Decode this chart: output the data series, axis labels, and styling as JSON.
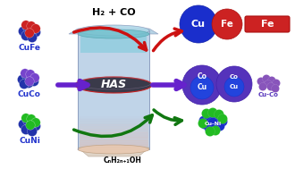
{
  "bg_color": "#ffffff",
  "cufe_label": "CuFe",
  "cuco_label": "CuCo",
  "cuni_label": "CuNi",
  "has_label": "HAS",
  "h2co_label": "H₂ + CO",
  "product_label": "CₙH₂ₙ₊₁OH",
  "cu_label": "Cu",
  "fe_label": "Fe",
  "co_label": "Co",
  "cuco_prod_label": "Cu-Co",
  "cuni_prod_label": "Cu-Ni",
  "blue_sphere": "#1a2ecc",
  "red_sphere": "#cc2222",
  "purple_sphere": "#7744cc",
  "green_sphere": "#22bb22",
  "dark_blue": "#1122bb",
  "dark_purple": "#4422aa",
  "arrow_red": "#cc1111",
  "arrow_purple": "#6622cc",
  "arrow_green": "#117711",
  "reactor_body": "#b8ccdd",
  "reactor_edge": "#8899bb",
  "reactor_top_fill": "#88ccdd",
  "reactor_dark": "#3a3a4a",
  "has_text": "#ffffff",
  "fe_rect": "#cc2222",
  "cu_circle": "#1a2ecc",
  "fe_circle": "#cc2222",
  "co_outer": "#5533bb",
  "co_inner": "#2233cc",
  "cufe_blue": "#2233aa",
  "cufe_red": "#cc2222",
  "cuco_blue": "#2233aa",
  "cuco_purple": "#7744cc",
  "cuni_blue": "#2233aa",
  "cuni_green": "#22bb22",
  "label_blue": "#2233cc"
}
